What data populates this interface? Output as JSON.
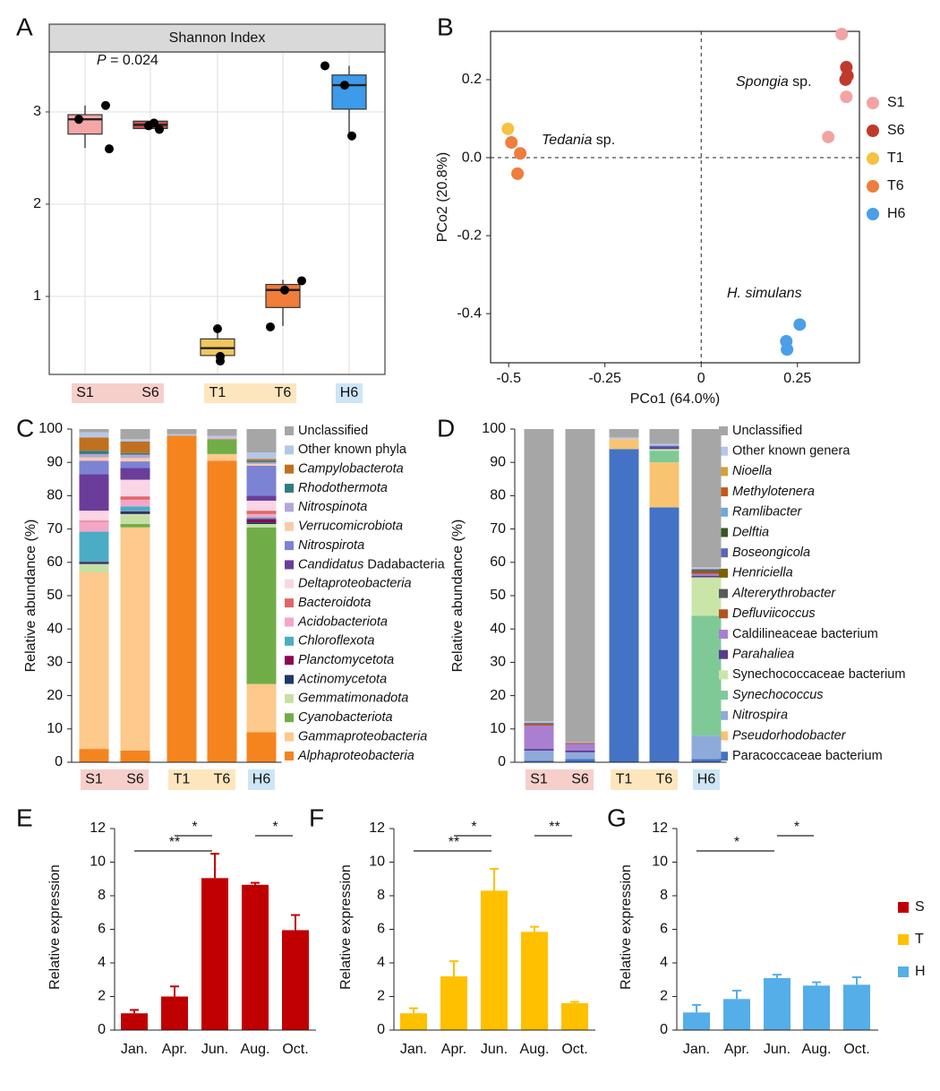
{
  "chart_data": [
    {
      "panel": "A",
      "type": "box",
      "title": "Shannon Index",
      "annotation": "P = 0.024",
      "annotation_style": "italic-first-word",
      "categories": [
        "S1",
        "S6",
        "T1",
        "T6",
        "H6"
      ],
      "category_colors": [
        "#f6cfcb",
        "#f6cfcb",
        "#fde6bd",
        "#fde6bd",
        "#cde5f6"
      ],
      "colors": [
        "#f4a6a6",
        "#c9504a",
        "#f0c75e",
        "#f07d3a",
        "#3d9be9"
      ],
      "boxes": [
        {
          "min": 2.61,
          "q1": 2.76,
          "median": 2.92,
          "q3": 2.97,
          "max": 3.07
        },
        {
          "min": 2.81,
          "q1": 2.82,
          "median": 2.86,
          "q3": 2.9,
          "max": 2.9
        },
        {
          "min": 0.29,
          "q1": 0.36,
          "median": 0.44,
          "q3": 0.54,
          "max": 0.66
        },
        {
          "min": 0.68,
          "q1": 0.88,
          "median": 1.07,
          "q3": 1.13,
          "max": 1.18
        },
        {
          "min": 2.76,
          "q1": 3.03,
          "median": 3.29,
          "q3": 3.4,
          "max": 3.5
        }
      ],
      "points": [
        [
          2.92,
          3.07,
          2.6
        ],
        [
          2.85,
          2.88,
          2.81
        ],
        [
          0.65,
          0.35,
          0.3
        ],
        [
          1.07,
          1.17,
          0.67
        ],
        [
          3.5,
          3.29,
          2.74
        ]
      ],
      "ylim": [
        0.155,
        3.65
      ],
      "yticks": [
        1,
        2,
        3
      ],
      "grid": true
    },
    {
      "panel": "B",
      "type": "scatter",
      "xlabel": "PCo1 (64.0%)",
      "ylabel": "PCo2 (20.8%)",
      "xlim": [
        -0.547,
        0.411
      ],
      "ylim": [
        -0.526,
        0.324
      ],
      "xticks": [
        -0.5,
        -0.25,
        0,
        0.25
      ],
      "yticks": [
        0.2,
        {
          "value": 0,
          "label": "0.0"
        },
        -0.2,
        -0.4
      ],
      "series": [
        {
          "name": "S1",
          "color": "#f2a3a3",
          "x": [
            0.365,
            0.377,
            0.33
          ],
          "y": [
            0.317,
            0.156,
            0.053
          ]
        },
        {
          "name": "S6",
          "color": "#c0392b",
          "x": [
            0.377,
            0.38,
            0.375
          ],
          "y": [
            0.232,
            0.21,
            0.2
          ]
        },
        {
          "name": "T1",
          "color": "#f5c242",
          "x": [
            -0.502
          ],
          "y": [
            0.074
          ]
        },
        {
          "name": "T6",
          "color": "#ef7d3d",
          "x": [
            -0.493,
            -0.47,
            -0.477
          ],
          "y": [
            0.039,
            0.011,
            -0.041
          ]
        },
        {
          "name": "H6",
          "color": "#4a9fe8",
          "x": [
            0.256,
            0.221,
            0.223
          ],
          "y": [
            -0.428,
            -0.471,
            -0.492
          ]
        }
      ],
      "annotations": [
        {
          "text": "Spongia sp.",
          "style": "italic-first-word"
        },
        {
          "text": "Tedania sp.",
          "style": "italic-first-word"
        },
        {
          "text": "H. simulans",
          "style": "italic"
        }
      ]
    },
    {
      "panel": "C",
      "type": "stacked_bar",
      "ylabel": "Relative abundance (%)",
      "categories": [
        "S1",
        "S6",
        "T1",
        "T6",
        "H6"
      ],
      "category_colors": [
        "#f6cfcb",
        "#f6cfcb",
        "#fde6bd",
        "#fde6bd",
        "#cde5f6"
      ],
      "ylim": [
        0,
        100
      ],
      "yticks": [
        0,
        10,
        20,
        30,
        40,
        50,
        60,
        70,
        80,
        90,
        100
      ],
      "series": [
        {
          "name": "Alphaproteobacteria",
          "color": "#f5841f",
          "style": "italic",
          "values": [
            4,
            3.5,
            98,
            90.5,
            9
          ]
        },
        {
          "name": "Gammaproteobacteria",
          "color": "#fdc98c",
          "style": "italic",
          "values": [
            53,
            67,
            0,
            2,
            14.5
          ]
        },
        {
          "name": "Cyanobacteriota",
          "color": "#70ad47",
          "style": "italic",
          "values": [
            0,
            1,
            0,
            4.5,
            47
          ]
        },
        {
          "name": "Gemmatimonadota",
          "color": "#c5e0a4",
          "style": "italic",
          "values": [
            2.5,
            3,
            0,
            0,
            1
          ]
        },
        {
          "name": "Actinomycetota",
          "color": "#1f3864",
          "style": "italic",
          "values": [
            0.5,
            0.5,
            0,
            0,
            0.5
          ]
        },
        {
          "name": "Planctomycetota",
          "color": "#8b0a50",
          "style": "italic",
          "values": [
            0.2,
            0.3,
            0,
            0,
            1
          ]
        },
        {
          "name": "Chloroflexota",
          "color": "#4bacc6",
          "style": "italic",
          "values": [
            9,
            1.5,
            0,
            0,
            0.5
          ]
        },
        {
          "name": "Acidobacteriota",
          "color": "#f4a6c8",
          "style": "italic",
          "values": [
            3,
            2,
            0,
            0.5,
            1
          ]
        },
        {
          "name": "Bacteroidota",
          "color": "#e06666",
          "style": "italic",
          "values": [
            0.3,
            1,
            0,
            0,
            1
          ]
        },
        {
          "name": "Deltaproteobacteria",
          "color": "#f9d5e5",
          "style": "italic",
          "values": [
            3,
            5,
            0,
            0,
            3
          ]
        },
        {
          "name": "Candidatus Dadabacteria",
          "color": "#6a3d9a",
          "style": "italic-first-word",
          "values": [
            11,
            3.5,
            0,
            0,
            1.5
          ]
        },
        {
          "name": "Nitrospirota",
          "color": "#7c83d4",
          "style": "italic",
          "values": [
            4,
            2,
            0,
            0,
            9
          ]
        },
        {
          "name": "Verrucomicrobiota",
          "color": "#f8cbad",
          "style": "italic",
          "values": [
            1,
            1,
            0,
            0,
            0.5
          ]
        },
        {
          "name": "Nitrospinota",
          "color": "#b4a7d6",
          "style": "italic",
          "values": [
            1,
            1,
            0,
            0,
            0.5
          ]
        },
        {
          "name": "Rhodothermota",
          "color": "#2e7d7d",
          "style": "italic",
          "values": [
            1,
            0.5,
            0,
            0,
            0.5
          ]
        },
        {
          "name": "Campylobacterota",
          "color": "#c07020",
          "style": "italic",
          "values": [
            4,
            3.5,
            0,
            0,
            0.5
          ]
        },
        {
          "name": "Other known phyla",
          "color": "#b4c7e7",
          "values": [
            1.5,
            0.7,
            0.5,
            0.5,
            2
          ]
        },
        {
          "name": "Unclassified",
          "color": "#a6a6a6",
          "values": [
            1,
            3,
            1.5,
            2,
            7
          ]
        }
      ]
    },
    {
      "panel": "D",
      "type": "stacked_bar",
      "ylabel": "Relative abundance (%)",
      "categories": [
        "S1",
        "S6",
        "T1",
        "T6",
        "H6"
      ],
      "category_colors": [
        "#f6cfcb",
        "#f6cfcb",
        "#fde6bd",
        "#fde6bd",
        "#cde5f6"
      ],
      "ylim": [
        0,
        100
      ],
      "yticks": [
        0,
        10,
        20,
        30,
        40,
        50,
        60,
        70,
        80,
        90,
        100
      ],
      "series": [
        {
          "name": "Paracoccaceae bacterium",
          "color": "#4472c4",
          "values": [
            0.5,
            1,
            94,
            76.5,
            1
          ]
        },
        {
          "name": "Pseudorhodobacter",
          "color": "#f8c471",
          "style": "italic",
          "values": [
            0,
            0,
            3,
            13.5,
            0
          ]
        },
        {
          "name": "Nitrospira",
          "color": "#8eaadb",
          "style": "italic",
          "values": [
            3,
            2,
            0,
            0,
            7
          ]
        },
        {
          "name": "Synechococcus",
          "color": "#7fc997",
          "style": "italic",
          "values": [
            0,
            0,
            0,
            3.5,
            36
          ]
        },
        {
          "name": "Synechococcaceae bacterium",
          "color": "#c9e6a8",
          "values": [
            0,
            0,
            0,
            0.5,
            11.5
          ]
        },
        {
          "name": "Parahaliea",
          "color": "#5b3a8c",
          "style": "italic",
          "values": [
            0.5,
            0.5,
            0,
            0.5,
            0.5
          ]
        },
        {
          "name": "Caldilineaceae bacterium",
          "color": "#a97fd1",
          "values": [
            7,
            2,
            0,
            0,
            0.5
          ]
        },
        {
          "name": "Defluviicoccus",
          "color": "#b5511e",
          "style": "italic",
          "values": [
            0.5,
            0.3,
            0,
            0,
            0.5
          ]
        },
        {
          "name": "Altererythrobacter",
          "color": "#595959",
          "style": "italic",
          "values": [
            0.3,
            0,
            0,
            0,
            0.5
          ]
        },
        {
          "name": "Henriciella",
          "color": "#7f6000",
          "style": "italic",
          "values": [
            0,
            0,
            0,
            0,
            0.3
          ]
        },
        {
          "name": "Boseongicola",
          "color": "#5b65b7",
          "style": "italic",
          "values": [
            0,
            0,
            0,
            0.5,
            0.2
          ]
        },
        {
          "name": "Delftia",
          "color": "#375623",
          "style": "italic",
          "values": [
            0,
            0,
            0,
            0,
            0
          ]
        },
        {
          "name": "Ramlibacter",
          "color": "#6fa8dc",
          "style": "italic",
          "values": [
            0,
            0,
            0,
            0,
            0
          ]
        },
        {
          "name": "Methylotenera",
          "color": "#c55a11",
          "style": "italic",
          "values": [
            0,
            0,
            0,
            0,
            0
          ]
        },
        {
          "name": "Nioella",
          "color": "#d4a03a",
          "style": "italic",
          "values": [
            0,
            0,
            0,
            0,
            0
          ]
        },
        {
          "name": "Other known genera",
          "color": "#b4c7e7",
          "values": [
            0.5,
            0.2,
            0.5,
            0.5,
            0.5
          ]
        },
        {
          "name": "Unclassified",
          "color": "#a6a6a6",
          "values": [
            87.7,
            94,
            2.5,
            4.5,
            41.5
          ]
        }
      ]
    },
    {
      "panel": "E",
      "type": "bar",
      "ylabel": "Relative expression",
      "categories": [
        "Jan.",
        "Apr.",
        "Jun.",
        "Aug.",
        "Oct."
      ],
      "ylim": [
        0,
        12
      ],
      "yticks": [
        0,
        2,
        4,
        6,
        8,
        10,
        12
      ],
      "series": [
        {
          "name": "S",
          "color": "#c00000",
          "values": [
            1,
            2,
            9.05,
            8.65,
            5.95
          ],
          "errors": [
            0.2,
            0.6,
            1.45,
            0.12,
            0.9
          ]
        }
      ],
      "significance": [
        {
          "label": "**",
          "from": 0,
          "to": 2
        },
        {
          "label": "*",
          "from": 1,
          "to": 2
        },
        {
          "label": "*",
          "from": 3,
          "to": 4
        }
      ]
    },
    {
      "panel": "F",
      "type": "bar",
      "ylabel": "Relative expression",
      "categories": [
        "Jan.",
        "Apr.",
        "Jun.",
        "Aug.",
        "Oct."
      ],
      "ylim": [
        0,
        12
      ],
      "yticks": [
        0,
        2,
        4,
        6,
        8,
        10,
        12
      ],
      "series": [
        {
          "name": "T",
          "color": "#ffc000",
          "values": [
            1,
            3.2,
            8.3,
            5.85,
            1.6
          ],
          "errors": [
            0.3,
            0.9,
            1.3,
            0.3,
            0.08
          ]
        }
      ],
      "significance": [
        {
          "label": "**",
          "from": 0,
          "to": 2
        },
        {
          "label": "*",
          "from": 1,
          "to": 2
        },
        {
          "label": "**",
          "from": 3,
          "to": 4
        }
      ]
    },
    {
      "panel": "G",
      "type": "bar",
      "ylabel": "Relative expression",
      "categories": [
        "Jan.",
        "Apr.",
        "Jun.",
        "Aug.",
        "Oct."
      ],
      "ylim": [
        0,
        12
      ],
      "yticks": [
        0,
        2,
        4,
        6,
        8,
        10,
        12
      ],
      "series": [
        {
          "name": "H",
          "color": "#55aee8",
          "values": [
            1.05,
            1.85,
            3.1,
            2.65,
            2.7
          ],
          "errors": [
            0.45,
            0.5,
            0.2,
            0.2,
            0.45
          ]
        }
      ],
      "significance": [
        {
          "label": "*",
          "from": 0,
          "to": 2
        },
        {
          "label": "*",
          "from": 2,
          "to": 3
        }
      ]
    }
  ]
}
